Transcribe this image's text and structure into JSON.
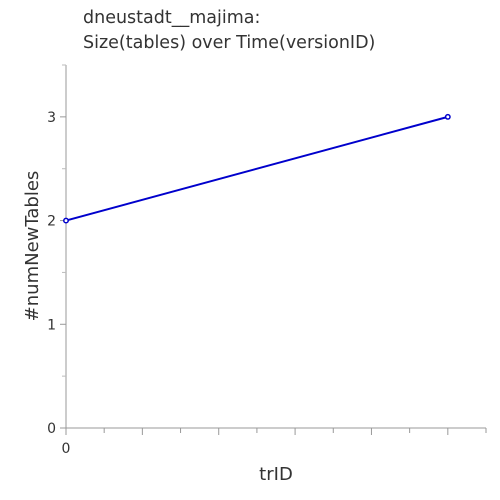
{
  "chart_data": {
    "type": "line",
    "title_lines": [
      "dneustadt__majima:",
      "Size(tables) over Time(versionID)"
    ],
    "xlabel": "trID",
    "ylabel": "#numNewTables",
    "x_tick_labels": [
      "0"
    ],
    "y_ticks": [
      0,
      1,
      2,
      3
    ],
    "ylim": [
      0,
      3.5
    ],
    "xlim": [
      0,
      11
    ],
    "grid": false,
    "legend": "none",
    "series": [
      {
        "color": "#0000cc",
        "x": [
          0,
          10
        ],
        "y": [
          2,
          3
        ]
      }
    ]
  }
}
